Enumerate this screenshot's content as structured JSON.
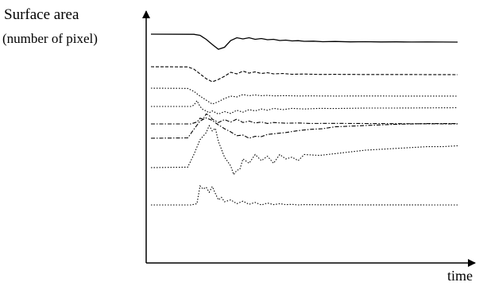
{
  "chart_data": {
    "type": "line",
    "ylabel_line1": "Surface area",
    "ylabel_line2": "(number of pixel)",
    "xlabel": "time",
    "xlim": [
      0,
      100
    ],
    "grid": false,
    "legend": "none",
    "series": [
      {
        "style": "solid",
        "x": [
          0,
          14,
          16,
          18,
          20,
          22,
          24,
          26,
          28,
          30,
          32,
          34,
          36,
          38,
          40,
          42,
          44,
          46,
          48,
          50,
          53,
          56,
          60,
          65,
          70,
          75,
          80,
          85,
          90,
          95,
          100
        ],
        "y": [
          1.0,
          0.98,
          0.85,
          0.35,
          -0.3,
          -0.9,
          -0.65,
          0.2,
          0.55,
          0.4,
          0.55,
          0.35,
          0.45,
          0.3,
          0.35,
          0.2,
          0.25,
          0.15,
          0.18,
          0.1,
          0.12,
          0.05,
          0.08,
          0.03,
          0.05,
          0.02,
          0.03,
          0.01,
          0.02,
          0.01,
          0.0
        ]
      },
      {
        "style": "dashed",
        "x": [
          0,
          12,
          14,
          16,
          18,
          20,
          22,
          24,
          26,
          28,
          30,
          32,
          34,
          36,
          38,
          40,
          43,
          46,
          50,
          55,
          60,
          70,
          80,
          90,
          100
        ],
        "y": [
          1.0,
          0.98,
          0.7,
          0.1,
          -0.5,
          -0.9,
          -0.6,
          -0.2,
          0.3,
          0.1,
          0.45,
          0.2,
          0.35,
          0.15,
          0.25,
          0.1,
          0.15,
          0.05,
          0.08,
          0.03,
          0.04,
          0.02,
          0.02,
          0.01,
          0.0
        ]
      },
      {
        "style": "dotted",
        "x": [
          0,
          12,
          14,
          16,
          18,
          20,
          22,
          24,
          26,
          28,
          30,
          32,
          34,
          36,
          38,
          40,
          44,
          48,
          52,
          60,
          70,
          80,
          90,
          100
        ],
        "y": [
          1.0,
          0.97,
          0.6,
          0.0,
          -0.5,
          -1.0,
          -0.7,
          -0.3,
          0.0,
          -0.1,
          0.2,
          0.05,
          0.15,
          0.05,
          0.1,
          0.03,
          0.06,
          0.02,
          0.03,
          0.01,
          0.02,
          0.01,
          0.01,
          0.0
        ]
      },
      {
        "style": "dotted",
        "x": [
          0,
          13,
          14,
          15,
          16,
          17,
          18,
          19,
          20,
          22,
          24,
          26,
          28,
          30,
          32,
          34,
          36,
          38,
          40,
          43,
          46,
          50,
          55,
          60,
          70,
          80,
          90,
          100
        ],
        "y": [
          0.2,
          0.2,
          0.4,
          1.1,
          0.2,
          -0.3,
          -0.5,
          -0.8,
          -0.5,
          -1.0,
          -0.6,
          -0.9,
          -0.4,
          -0.7,
          -0.3,
          -0.5,
          -0.2,
          -0.4,
          -0.1,
          -0.3,
          -0.1,
          -0.2,
          -0.1,
          -0.12,
          -0.05,
          -0.05,
          -0.02,
          0.0
        ]
      },
      {
        "style": "dash-dot",
        "x": [
          0,
          13,
          15,
          16,
          17,
          18,
          19,
          20,
          22,
          24,
          26,
          28,
          30,
          32,
          34,
          36,
          38,
          40,
          44,
          48,
          52,
          60,
          70,
          80,
          90,
          100
        ],
        "y": [
          0.0,
          0.0,
          0.4,
          1.2,
          1.0,
          2.1,
          1.8,
          1.0,
          0.3,
          0.9,
          0.4,
          1.0,
          0.3,
          0.6,
          0.2,
          0.4,
          0.1,
          0.3,
          0.15,
          0.2,
          0.1,
          0.12,
          0.08,
          0.05,
          0.03,
          0.0
        ]
      },
      {
        "style": "dash-dot",
        "x": [
          0,
          12,
          14,
          16,
          18,
          20,
          22,
          24,
          26,
          28,
          30,
          32,
          34,
          36,
          38,
          40,
          44,
          48,
          52,
          56,
          60,
          70,
          80,
          90,
          100
        ],
        "y": [
          0.0,
          0.05,
          1.4,
          2.7,
          3.2,
          2.8,
          2.1,
          1.5,
          1.0,
          0.4,
          0.5,
          0.0,
          0.3,
          0.25,
          0.6,
          0.7,
          0.9,
          1.2,
          1.4,
          1.5,
          1.8,
          2.0,
          2.2,
          2.3,
          2.3
        ]
      },
      {
        "style": "dotted",
        "x": [
          0,
          12,
          14,
          16,
          18,
          19,
          20,
          21,
          22,
          24,
          26,
          27,
          28,
          29,
          30,
          32,
          34,
          36,
          38,
          40,
          42,
          44,
          46,
          48,
          50,
          55,
          60,
          65,
          70,
          75,
          80,
          85,
          90,
          95,
          100
        ],
        "y": [
          0.0,
          0.05,
          1.5,
          3.2,
          4.0,
          4.8,
          4.2,
          4.5,
          3.0,
          1.2,
          0.2,
          -0.8,
          -0.3,
          -0.2,
          1.0,
          0.5,
          1.5,
          0.8,
          1.3,
          0.5,
          1.5,
          1.0,
          1.2,
          0.8,
          1.5,
          1.4,
          1.6,
          1.8,
          2.0,
          2.1,
          2.2,
          2.3,
          2.4,
          2.4,
          2.5
        ]
      },
      {
        "style": "dotted",
        "x": [
          0,
          13,
          15,
          16,
          17,
          18,
          19,
          20,
          21,
          22,
          23,
          24,
          26,
          28,
          30,
          32,
          34,
          36,
          38,
          40,
          42,
          44,
          46,
          48,
          50,
          55,
          60,
          70,
          80,
          90,
          100
        ],
        "y": [
          0.0,
          0.0,
          0.2,
          3.0,
          2.5,
          2.8,
          2.0,
          2.9,
          1.8,
          0.8,
          1.2,
          0.5,
          0.8,
          0.2,
          0.6,
          0.1,
          0.4,
          0.0,
          0.3,
          0.05,
          0.2,
          0.05,
          0.1,
          0.0,
          0.05,
          0.02,
          0.03,
          0.01,
          0.01,
          0.0,
          0.0
        ]
      }
    ]
  }
}
